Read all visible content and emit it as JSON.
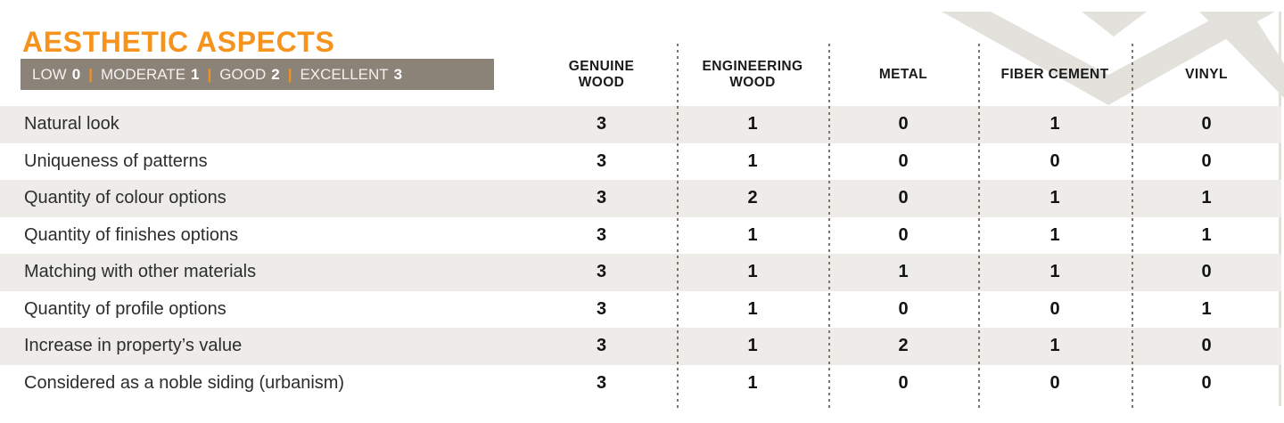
{
  "title": "AESTHETIC ASPECTS",
  "legend": {
    "separator": "|",
    "items": [
      {
        "label": "LOW",
        "value": "0"
      },
      {
        "label": "MODERATE",
        "value": "1"
      },
      {
        "label": "GOOD",
        "value": "2"
      },
      {
        "label": "EXCELLENT",
        "value": "3"
      }
    ]
  },
  "columns": [
    {
      "id": "genuine-wood",
      "label": "GENUINE\nWOOD"
    },
    {
      "id": "engineering-wood",
      "label": "ENGINEERING\nWOOD"
    },
    {
      "id": "metal",
      "label": "METAL"
    },
    {
      "id": "fiber-cement",
      "label": "FIBER CEMENT"
    },
    {
      "id": "vinyl",
      "label": "VINYL"
    }
  ],
  "rows": [
    {
      "label": "Natural look",
      "values": [
        "3",
        "1",
        "0",
        "1",
        "0"
      ]
    },
    {
      "label": "Uniqueness of patterns",
      "values": [
        "3",
        "1",
        "0",
        "0",
        "0"
      ]
    },
    {
      "label": "Quantity of colour options",
      "values": [
        "3",
        "2",
        "0",
        "1",
        "1"
      ]
    },
    {
      "label": "Quantity of finishes options",
      "values": [
        "3",
        "1",
        "0",
        "1",
        "1"
      ]
    },
    {
      "label": "Matching with other materials",
      "values": [
        "3",
        "1",
        "1",
        "1",
        "0"
      ]
    },
    {
      "label": "Quantity of profile options",
      "values": [
        "3",
        "1",
        "0",
        "0",
        "1"
      ]
    },
    {
      "label": "Increase in property’s value",
      "values": [
        "3",
        "1",
        "2",
        "1",
        "0"
      ]
    },
    {
      "label": "Considered as a noble siding (urbanism)",
      "values": [
        "3",
        "1",
        "0",
        "0",
        "0"
      ]
    }
  ],
  "colors": {
    "accent_orange": "#F6931D",
    "legend_bar_taupe": "#8B8278",
    "row_stripe_gray": "#EDECE9",
    "chevron_gray": "#E3E1DC",
    "dotted_separator": "#7E766D",
    "text_dark": "#1A1A1A"
  },
  "icons": {
    "chevron_decoration": "double-v-chevron"
  },
  "chart_data": {
    "type": "table",
    "title": "AESTHETIC ASPECTS",
    "rating_scale": {
      "LOW": 0,
      "MODERATE": 1,
      "GOOD": 2,
      "EXCELLENT": 3
    },
    "columns": [
      "GENUINE WOOD",
      "ENGINEERING WOOD",
      "METAL",
      "FIBER CEMENT",
      "VINYL"
    ],
    "row_labels": [
      "Natural look",
      "Uniqueness of patterns",
      "Quantity of colour options",
      "Quantity of finishes options",
      "Matching with other materials",
      "Quantity of profile options",
      "Increase in property’s value",
      "Considered as a noble siding (urbanism)"
    ],
    "values": [
      [
        3,
        1,
        0,
        1,
        0
      ],
      [
        3,
        1,
        0,
        0,
        0
      ],
      [
        3,
        2,
        0,
        1,
        1
      ],
      [
        3,
        1,
        0,
        1,
        1
      ],
      [
        3,
        1,
        1,
        1,
        0
      ],
      [
        3,
        1,
        0,
        0,
        1
      ],
      [
        3,
        1,
        2,
        1,
        0
      ],
      [
        3,
        1,
        0,
        0,
        0
      ]
    ]
  }
}
